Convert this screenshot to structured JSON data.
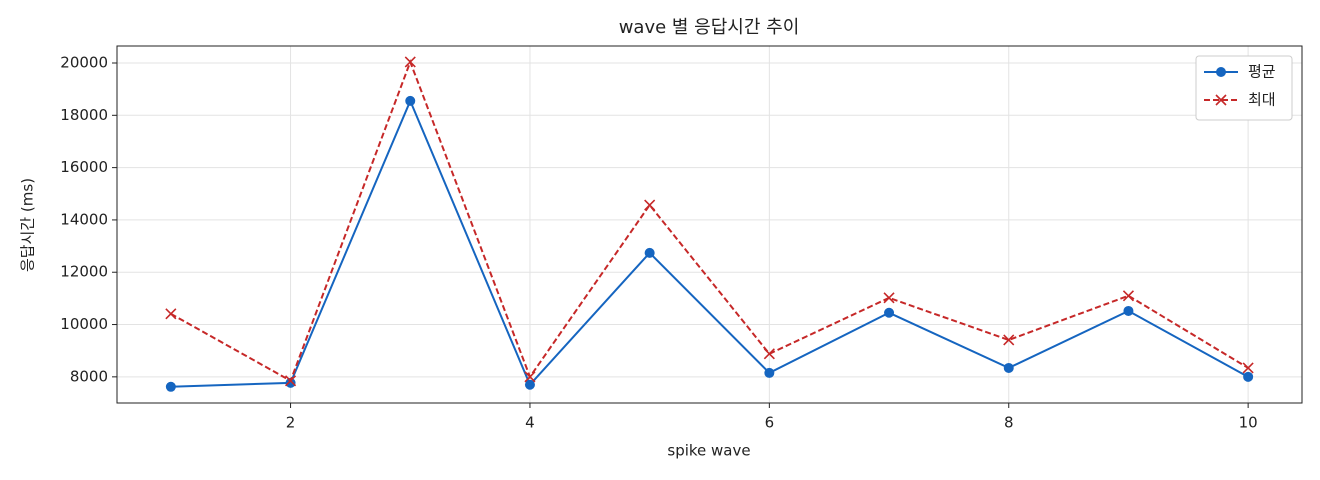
{
  "chart_data": {
    "type": "line",
    "title": "wave 별 응답시간 추이",
    "x_label": "spike wave",
    "y_label": "응답시간 (ms)",
    "x": [
      1,
      2,
      3,
      4,
      5,
      6,
      7,
      8,
      9,
      10
    ],
    "series": [
      {
        "name": "평균",
        "color": "#1565c0",
        "marker": "circle",
        "dash": "solid",
        "values": [
          7620,
          7770,
          18550,
          7700,
          12740,
          8150,
          10450,
          8340,
          10520,
          8000
        ]
      },
      {
        "name": "최대",
        "color": "#c62828",
        "marker": "x",
        "dash": "dashed",
        "values": [
          10410,
          7850,
          20040,
          8000,
          14570,
          8880,
          11020,
          9410,
          11100,
          8340
        ]
      }
    ],
    "xlim": [
      0.55,
      10.45
    ],
    "xticks": [
      2,
      4,
      6,
      8,
      10
    ],
    "ylim": [
      7000,
      20650
    ],
    "yticks": [
      8000,
      10000,
      12000,
      14000,
      16000,
      18000,
      20000
    ],
    "grid": true,
    "legend": "upper right"
  }
}
